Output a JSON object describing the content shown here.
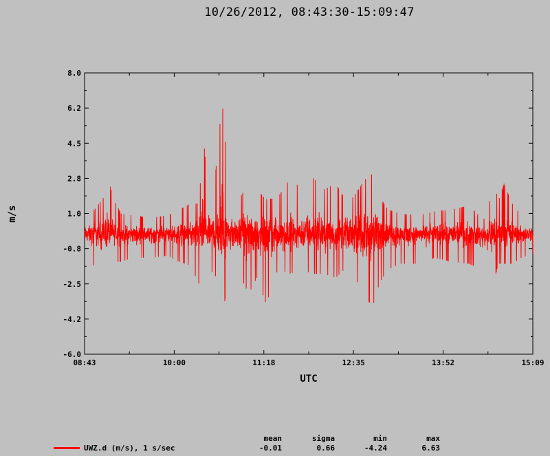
{
  "title": "10/26/2012, 08:43:30-15:09:47",
  "colors": {
    "background": "#c0c0c0",
    "plot_background": "#c0c0c0",
    "trace": "#ff0000",
    "axis": "#000000"
  },
  "chart_data": {
    "type": "line",
    "title": "10/26/2012, 08:43:30-15:09:47",
    "xlabel": "UTC",
    "ylabel": "m/s",
    "xlim": [
      "08:43:30",
      "15:09:47"
    ],
    "ylim": [
      -6.0,
      8.0
    ],
    "x_tick_labels": [
      "08:43",
      "10:00",
      "11:18",
      "12:35",
      "13:52",
      "15:09"
    ],
    "y_tick_labels": [
      "8.0",
      "6.2",
      "4.5",
      "2.8",
      "1.0",
      "-0.8",
      "-2.5",
      "-4.2",
      "-6.0"
    ],
    "grid": false,
    "legend_position": "bottom-left",
    "sample_rate": "1 s/sec",
    "series": [
      {
        "name": "UWZ.d (m/s), 1 s/sec",
        "color": "#ff0000",
        "envelope": {
          "times": [
            "08:43:30",
            "08:52",
            "09:00",
            "09:03",
            "09:08",
            "09:15",
            "09:25",
            "09:40",
            "09:55",
            "10:05",
            "10:15",
            "10:22",
            "10:26",
            "10:30",
            "10:36",
            "10:42",
            "10:48",
            "10:55",
            "11:05",
            "11:12",
            "11:20",
            "11:30",
            "11:40",
            "11:50",
            "12:00",
            "12:10",
            "12:20",
            "12:27",
            "12:35",
            "12:45",
            "12:52",
            "12:58",
            "13:05",
            "13:15",
            "13:30",
            "13:45",
            "14:00",
            "14:15",
            "14:25",
            "14:30",
            "14:36",
            "14:40",
            "14:45",
            "14:52",
            "15:00",
            "15:09:47"
          ],
          "max": [
            0.8,
            1.2,
            1.8,
            3.0,
            1.8,
            1.0,
            0.9,
            0.8,
            0.9,
            1.2,
            1.5,
            1.5,
            4.8,
            2.0,
            2.8,
            6.63,
            2.2,
            1.5,
            2.6,
            2.2,
            1.7,
            1.8,
            2.7,
            2.3,
            2.8,
            2.2,
            2.5,
            1.8,
            1.8,
            2.7,
            3.0,
            1.8,
            1.2,
            1.0,
            0.9,
            1.1,
            1.2,
            1.4,
            0.8,
            0.7,
            2.8,
            1.6,
            2.5,
            1.5,
            0.9,
            0.9
          ],
          "min": [
            -1.2,
            -1.6,
            -2.0,
            -1.8,
            -1.4,
            -1.4,
            -1.2,
            -1.2,
            -1.1,
            -1.4,
            -1.6,
            -2.5,
            -2.2,
            -1.8,
            -2.0,
            -4.24,
            -2.0,
            -1.8,
            -3.0,
            -2.2,
            -3.5,
            -1.8,
            -2.0,
            -1.8,
            -2.0,
            -2.0,
            -2.2,
            -1.8,
            -2.0,
            -3.2,
            -3.6,
            -2.4,
            -1.8,
            -1.5,
            -1.5,
            -1.2,
            -1.4,
            -1.5,
            -1.8,
            -2.0,
            -2.5,
            -1.5,
            -1.5,
            -1.5,
            -1.2,
            -1.0
          ]
        },
        "stats": {
          "mean": "-0.01",
          "sigma": "0.66",
          "min": "-4.24",
          "max": "6.63"
        }
      }
    ]
  },
  "legend": {
    "entry_label": "UWZ.d (m/s), 1 s/sec",
    "headers": {
      "mean": "mean",
      "sigma": "sigma",
      "min": "min",
      "max": "max"
    },
    "values": {
      "mean": "-0.01",
      "sigma": "0.66",
      "min": "-4.24",
      "max": "6.63"
    }
  }
}
